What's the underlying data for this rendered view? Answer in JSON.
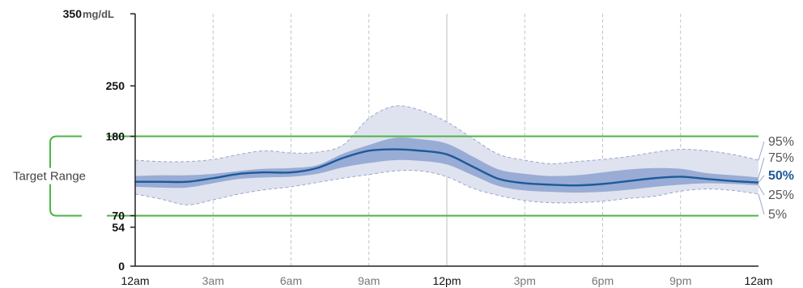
{
  "chart_data": {
    "type": "area",
    "y_unit": "mg/dL",
    "ylim": [
      0,
      350
    ],
    "y_ticks": [
      {
        "value": 0,
        "label": "0"
      },
      {
        "value": 54,
        "label": "54"
      },
      {
        "value": 70,
        "label": "70"
      },
      {
        "value": 180,
        "label": "180"
      },
      {
        "value": 250,
        "label": "250"
      },
      {
        "value": 350,
        "label": "350"
      }
    ],
    "x_ticks": [
      {
        "hour": 0,
        "label": "12am",
        "major": true
      },
      {
        "hour": 3,
        "label": "3am",
        "major": false
      },
      {
        "hour": 6,
        "label": "6am",
        "major": false
      },
      {
        "hour": 9,
        "label": "9am",
        "major": false
      },
      {
        "hour": 12,
        "label": "12pm",
        "major": true
      },
      {
        "hour": 15,
        "label": "3pm",
        "major": false
      },
      {
        "hour": 18,
        "label": "6pm",
        "major": false
      },
      {
        "hour": 21,
        "label": "9pm",
        "major": false
      },
      {
        "hour": 24,
        "label": "12am",
        "major": true
      }
    ],
    "target_range": {
      "label": "Target Range",
      "low": 70,
      "high": 180
    },
    "hours": [
      0,
      1,
      2,
      3,
      4,
      5,
      6,
      7,
      8,
      9,
      10,
      11,
      12,
      13,
      14,
      15,
      16,
      17,
      18,
      19,
      20,
      21,
      22,
      23,
      24
    ],
    "series": [
      {
        "name": "95%",
        "values": [
          147,
          145,
          145,
          148,
          155,
          160,
          157,
          158,
          168,
          205,
          222,
          216,
          200,
          177,
          155,
          147,
          142,
          145,
          148,
          152,
          158,
          162,
          160,
          155,
          147
        ]
      },
      {
        "name": "75%",
        "values": [
          125,
          126,
          126,
          128,
          132,
          135,
          136,
          140,
          156,
          168,
          178,
          176,
          170,
          152,
          134,
          128,
          125,
          126,
          130,
          134,
          136,
          135,
          129,
          126,
          123
        ]
      },
      {
        "name": "50%",
        "values": [
          117,
          117,
          117,
          122,
          128,
          130,
          130,
          136,
          150,
          160,
          162,
          160,
          155,
          138,
          121,
          115,
          113,
          112,
          114,
          118,
          122,
          124,
          121,
          118,
          116
        ]
      },
      {
        "name": "25%",
        "values": [
          110,
          109,
          109,
          115,
          121,
          123,
          124,
          128,
          137,
          143,
          147,
          146,
          141,
          126,
          111,
          105,
          103,
          102,
          103,
          106,
          110,
          113,
          115,
          114,
          112
        ]
      },
      {
        "name": "5%",
        "values": [
          100,
          93,
          85,
          92,
          100,
          106,
          110,
          116,
          122,
          127,
          132,
          132,
          124,
          108,
          98,
          91,
          88,
          88,
          90,
          94,
          97,
          104,
          107,
          105,
          100
        ]
      }
    ]
  }
}
